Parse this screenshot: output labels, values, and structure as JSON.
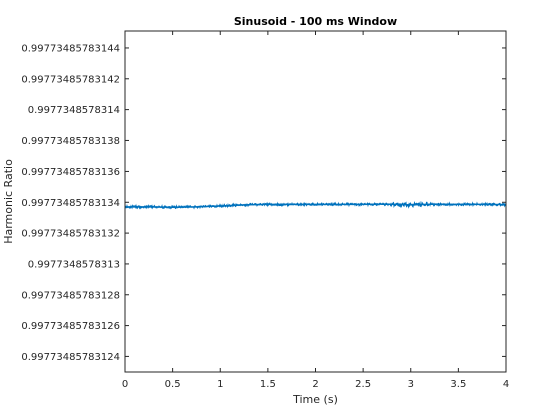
{
  "chart_data": {
    "type": "line",
    "title": "Sinusoid - 100 ms Window",
    "xlabel": "Time (s)",
    "ylabel": "Harmonic Ratio",
    "xlim": [
      0,
      4
    ],
    "ylim": [
      0.99773485783123,
      0.997734857831451
    ],
    "xticks": [
      0,
      0.5,
      1,
      1.5,
      2,
      2.5,
      3,
      3.5,
      4
    ],
    "xtick_labels": [
      "0",
      "0.5",
      "1",
      "1.5",
      "2",
      "2.5",
      "3",
      "3.5",
      "4"
    ],
    "yticks": [
      0.99773485783144,
      0.99773485783142,
      0.9977348578314,
      0.99773485783138,
      0.99773485783136,
      0.99773485783134,
      0.99773485783132,
      0.9977348578313,
      0.99773485783128,
      0.99773485783126,
      0.99773485783124
    ],
    "ytick_labels": [
      "0.99773485783144",
      "0.99773485783142",
      "0.9977348578314",
      "0.99773485783138",
      "0.99773485783136",
      "0.99773485783134",
      "0.99773485783132",
      "0.9977348578313",
      "0.99773485783128",
      "0.99773485783126",
      "0.99773485783124"
    ],
    "grid": false,
    "series": [
      {
        "color": "#0072BD",
        "x": [
          0,
          0.25,
          0.5,
          0.75,
          1,
          1.25,
          1.5,
          1.75,
          2,
          2.25,
          2.5,
          2.75,
          3,
          3.25,
          3.5,
          3.75,
          4
        ],
        "y": [
          0.997734857831337,
          0.997734857831337,
          0.9977348578313368,
          0.997734857831337,
          0.9977348578313375,
          0.9977348578313383,
          0.9977348578313386,
          0.9977348578313386,
          0.9977348578313386,
          0.9977348578313386,
          0.9977348578313386,
          0.9977348578313388,
          0.9977348578313383,
          0.9977348578313388,
          0.9977348578313386,
          0.9977348578313386,
          0.9977348578313384
        ]
      }
    ]
  }
}
